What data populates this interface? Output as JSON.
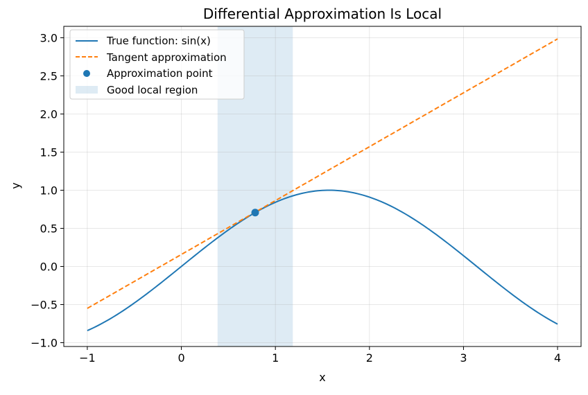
{
  "chart_data": {
    "type": "line",
    "title": "Differential Approximation Is Local",
    "xlabel": "x",
    "ylabel": "y",
    "xlim": [
      -1.25,
      4.25
    ],
    "ylim": [
      -1.05,
      3.15
    ],
    "xticks": [
      -1,
      0,
      1,
      2,
      3,
      4
    ],
    "xtick_labels": [
      "−1",
      "0",
      "1",
      "2",
      "3",
      "4"
    ],
    "yticks": [
      -1.0,
      -0.5,
      0.0,
      0.5,
      1.0,
      1.5,
      2.0,
      2.5,
      3.0
    ],
    "ytick_labels": [
      "−1.0",
      "−0.5",
      "0.0",
      "0.5",
      "1.0",
      "1.5",
      "2.0",
      "2.5",
      "3.0"
    ],
    "grid": true,
    "legend_position": "top-left",
    "series": [
      {
        "name": "True function: sin(x)",
        "kind": "line",
        "function": "sin(x)",
        "x_range": [
          -1,
          4
        ],
        "color": "#1f77b4"
      },
      {
        "name": "Tangent approximation",
        "kind": "dashed-line",
        "x": [
          -1,
          4
        ],
        "y": [
          -0.55,
          2.985
        ],
        "color": "#ff7f0e"
      },
      {
        "name": "Approximation point",
        "kind": "point",
        "x": 0.785,
        "y": 0.707,
        "color": "#1f77b4"
      },
      {
        "name": "Good local region",
        "kind": "span",
        "x_range": [
          0.385,
          1.185
        ],
        "color": "#1f77b4"
      }
    ]
  }
}
